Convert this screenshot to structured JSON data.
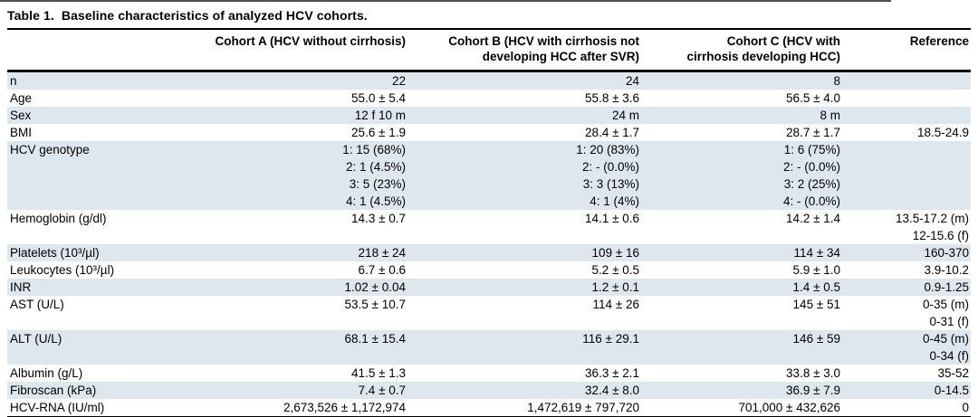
{
  "title": "Table 1.  Baseline characteristics of analyzed HCV cohorts.",
  "stripe_color": "#dee7ee",
  "rule_color": "#000000",
  "table": {
    "columns": {
      "label": "",
      "cohort_a": "Cohort A (HCV without cirrhosis)",
      "cohort_b": "Cohort B (HCV with cirrhosis not\ndeveloping HCC after SVR)",
      "cohort_c": "Cohort C (HCV with\ncirrhosis developing HCC)",
      "reference": "Reference"
    },
    "rows": [
      {
        "label": "n",
        "cohort_a": "22",
        "cohort_b": "24",
        "cohort_c": "8",
        "reference": ""
      },
      {
        "label": "Age",
        "cohort_a": "55.0 ± 5.4",
        "cohort_b": "55.8 ± 3.6",
        "cohort_c": "56.5 ± 4.0",
        "reference": ""
      },
      {
        "label": "Sex",
        "cohort_a": "12 f 10 m",
        "cohort_b": "24 m",
        "cohort_c": "8 m",
        "reference": ""
      },
      {
        "label": "BMI",
        "cohort_a": "25.6 ± 1.9",
        "cohort_b": "28.4 ± 1.7",
        "cohort_c": "28.7 ± 1.7",
        "reference": "18.5-24.9"
      },
      {
        "label": "HCV genotype",
        "cohort_a": "1: 15 (68%)\n2: 1 (4.5%)\n3: 5 (23%)\n4: 1 (4.5%)",
        "cohort_b": "1: 20 (83%)\n2: - (0.0%)\n3: 3 (13%)\n4: 1 (4%)",
        "cohort_c": "1: 6 (75%)\n2: - (0.0%)\n3: 2 (25%)\n4: - (0.0%)",
        "reference": ""
      },
      {
        "label": "Hemoglobin (g/dl)",
        "cohort_a": "14.3 ± 0.7",
        "cohort_b": "14.1 ± 0.6",
        "cohort_c": "14.2 ± 1.4",
        "reference": "13.5-17.2 (m)\n12-15.6 (f)"
      },
      {
        "label": "Platelets (10³/µl)",
        "cohort_a": "218 ± 24",
        "cohort_b": "109 ± 16",
        "cohort_c": "114 ± 34",
        "reference": "160-370"
      },
      {
        "label": "Leukocytes (10³/µl)",
        "cohort_a": "6.7 ± 0.6",
        "cohort_b": "5.2 ± 0.5",
        "cohort_c": "5.9 ± 1.0",
        "reference": "3.9-10.2"
      },
      {
        "label": "INR",
        "cohort_a": "1.02 ± 0.04",
        "cohort_b": "1.2 ± 0.1",
        "cohort_c": "1.4 ± 0.5",
        "reference": "0.9-1.25"
      },
      {
        "label": "AST (U/L)",
        "cohort_a": "53.5 ± 10.7",
        "cohort_b": "114 ± 26",
        "cohort_c": "145 ± 51",
        "reference": "0-35 (m)\n0-31 (f)"
      },
      {
        "label": "ALT (U/L)",
        "cohort_a": "68.1 ± 15.4",
        "cohort_b": "116 ± 29.1",
        "cohort_c": "146 ± 59",
        "reference": "0-45 (m)\n0-34 (f)"
      },
      {
        "label": "Albumin (g/L)",
        "cohort_a": "41.5 ± 1.3",
        "cohort_b": "36.3 ± 2.1",
        "cohort_c": "33.8 ± 3.0",
        "reference": "35-52"
      },
      {
        "label": "Fibroscan (kPa)",
        "cohort_a": "7.4 ± 0.7",
        "cohort_b": "32.4 ± 8.0",
        "cohort_c": "36.9 ± 7.9",
        "reference": "0-14.5"
      },
      {
        "label": "HCV-RNA (IU/ml)",
        "cohort_a": "2,673,526 ± 1,172,974",
        "cohort_b": "1,472,619 ± 797,720",
        "cohort_c": "701,000 ± 432,626",
        "reference": "0"
      }
    ]
  }
}
